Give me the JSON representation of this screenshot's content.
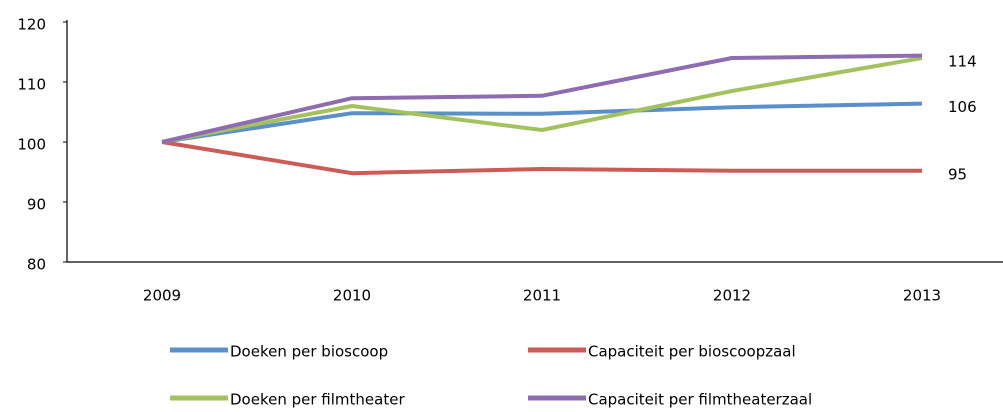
{
  "chart_data": {
    "type": "line",
    "categories": [
      "2009",
      "2010",
      "2011",
      "2012",
      "2013"
    ],
    "series": [
      {
        "name": "Doeken per bioscoop",
        "color": "#5b8fc9",
        "values": [
          100,
          104.8,
          104.7,
          105.8,
          106.4
        ],
        "value_labels": [
          null,
          null,
          null,
          null,
          "106"
        ]
      },
      {
        "name": "Capaciteit per bioscoopzaal",
        "color": "#cc5a55",
        "values": [
          100,
          94.8,
          95.5,
          95.2,
          95.2
        ],
        "value_labels": [
          null,
          null,
          null,
          null,
          "95"
        ]
      },
      {
        "name": "Doeken per filmtheater",
        "color": "#a3c25e",
        "values": [
          100,
          106,
          102,
          108.5,
          114
        ],
        "value_labels": [
          null,
          null,
          null,
          null,
          "114"
        ]
      },
      {
        "name": "Capaciteit per filmtheaterzaal",
        "color": "#8d6cb0",
        "values": [
          100,
          107.3,
          107.7,
          114,
          114.4
        ]
      }
    ],
    "ylim": [
      80,
      120
    ],
    "yticks": [
      80,
      90,
      100,
      110,
      120
    ],
    "grid": false
  }
}
